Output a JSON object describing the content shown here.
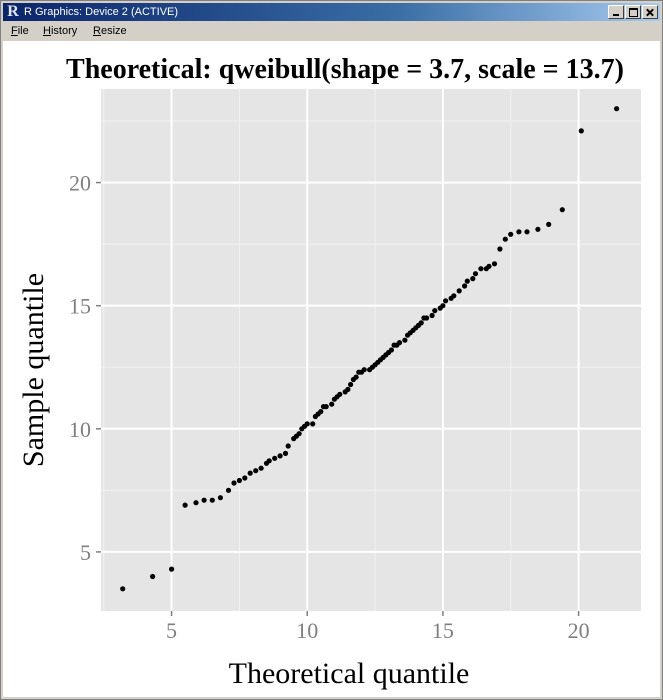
{
  "window": {
    "title": "R Graphics: Device 2 (ACTIVE)",
    "logo_letter": "R",
    "buttons": [
      "minimize-icon",
      "maximize-icon",
      "close-icon"
    ]
  },
  "menu": {
    "items": [
      {
        "accel": "F",
        "rest": "ile"
      },
      {
        "accel": "H",
        "rest": "istory"
      },
      {
        "accel": "R",
        "rest": "esize"
      }
    ]
  },
  "colors": {
    "panel_bg": "#e5e5e5",
    "grid_major": "#ffffff",
    "grid_minor": "#f2f2f2",
    "point": "#000000",
    "tick_label": "#7f7f7f"
  },
  "chart_data": {
    "type": "scatter",
    "title": "Theoretical: qweibull(shape = 3.7, scale = 13.7)",
    "xlabel": "Theoretical quantile",
    "ylabel": "Sample quantile",
    "xlim": [
      2.4,
      22.3
    ],
    "ylim": [
      2.6,
      23.8
    ],
    "xticks": [
      5,
      10,
      15,
      20
    ],
    "yticks": [
      5,
      10,
      15,
      20
    ],
    "grid": true,
    "points": [
      [
        3.2,
        3.5
      ],
      [
        4.3,
        4.0
      ],
      [
        5.0,
        4.3
      ],
      [
        5.5,
        6.9
      ],
      [
        5.9,
        7.0
      ],
      [
        6.2,
        7.1
      ],
      [
        6.5,
        7.1
      ],
      [
        6.8,
        7.2
      ],
      [
        7.1,
        7.5
      ],
      [
        7.3,
        7.8
      ],
      [
        7.5,
        7.9
      ],
      [
        7.7,
        8.0
      ],
      [
        7.9,
        8.2
      ],
      [
        8.1,
        8.3
      ],
      [
        8.3,
        8.4
      ],
      [
        8.5,
        8.6
      ],
      [
        8.6,
        8.7
      ],
      [
        8.8,
        8.8
      ],
      [
        9.0,
        8.9
      ],
      [
        9.2,
        9.0
      ],
      [
        9.3,
        9.3
      ],
      [
        9.5,
        9.6
      ],
      [
        9.6,
        9.7
      ],
      [
        9.7,
        9.8
      ],
      [
        9.8,
        10.0
      ],
      [
        9.9,
        10.1
      ],
      [
        10.0,
        10.2
      ],
      [
        10.2,
        10.2
      ],
      [
        10.3,
        10.5
      ],
      [
        10.4,
        10.6
      ],
      [
        10.5,
        10.7
      ],
      [
        10.6,
        10.9
      ],
      [
        10.7,
        10.9
      ],
      [
        10.9,
        11.0
      ],
      [
        11.0,
        11.2
      ],
      [
        11.1,
        11.3
      ],
      [
        11.2,
        11.4
      ],
      [
        11.4,
        11.5
      ],
      [
        11.5,
        11.6
      ],
      [
        11.6,
        11.8
      ],
      [
        11.7,
        12.0
      ],
      [
        11.8,
        12.1
      ],
      [
        11.9,
        12.3
      ],
      [
        12.0,
        12.3
      ],
      [
        12.1,
        12.4
      ],
      [
        12.3,
        12.4
      ],
      [
        12.4,
        12.5
      ],
      [
        12.5,
        12.6
      ],
      [
        12.6,
        12.7
      ],
      [
        12.7,
        12.8
      ],
      [
        12.8,
        12.9
      ],
      [
        12.9,
        13.0
      ],
      [
        13.0,
        13.1
      ],
      [
        13.1,
        13.2
      ],
      [
        13.2,
        13.4
      ],
      [
        13.3,
        13.4
      ],
      [
        13.4,
        13.5
      ],
      [
        13.6,
        13.6
      ],
      [
        13.7,
        13.8
      ],
      [
        13.8,
        13.9
      ],
      [
        13.9,
        14.0
      ],
      [
        14.0,
        14.1
      ],
      [
        14.1,
        14.2
      ],
      [
        14.2,
        14.3
      ],
      [
        14.3,
        14.5
      ],
      [
        14.4,
        14.5
      ],
      [
        14.6,
        14.6
      ],
      [
        14.7,
        14.8
      ],
      [
        14.9,
        14.9
      ],
      [
        15.0,
        15.0
      ],
      [
        15.1,
        15.2
      ],
      [
        15.3,
        15.3
      ],
      [
        15.4,
        15.4
      ],
      [
        15.6,
        15.6
      ],
      [
        15.8,
        15.8
      ],
      [
        15.9,
        16.0
      ],
      [
        16.1,
        16.1
      ],
      [
        16.2,
        16.3
      ],
      [
        16.4,
        16.5
      ],
      [
        16.6,
        16.5
      ],
      [
        16.7,
        16.6
      ],
      [
        16.9,
        16.7
      ],
      [
        17.1,
        17.3
      ],
      [
        17.3,
        17.7
      ],
      [
        17.5,
        17.9
      ],
      [
        17.8,
        18.0
      ],
      [
        18.1,
        18.0
      ],
      [
        18.5,
        18.1
      ],
      [
        18.9,
        18.3
      ],
      [
        19.4,
        18.9
      ],
      [
        20.1,
        22.1
      ],
      [
        21.4,
        23.0
      ]
    ]
  }
}
